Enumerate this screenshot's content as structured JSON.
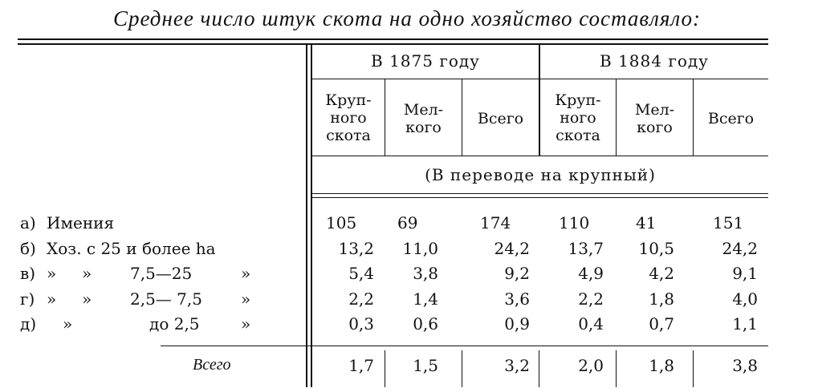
{
  "title": "Среднее число штук скота на одно хозяйство составляло:",
  "headers": {
    "year1": "В 1875 году",
    "year2": "В 1884 году",
    "sub1": [
      "Круп-",
      "ного",
      "скота"
    ],
    "sub2": [
      "Мел-",
      "кого"
    ],
    "sub3": "Всего",
    "conversion": "(В переводе на крупный)"
  },
  "rows": [
    {
      "c1": "а)",
      "c2": "Имения",
      "c3": "",
      "c4": "",
      "values": [
        "105",
        "69",
        "174",
        "110",
        "41",
        "151"
      ]
    },
    {
      "c1": "б)",
      "c2": "Хоз. с 25 и более ha",
      "c3": "",
      "c4": "",
      "values": [
        "13,2",
        "11,0",
        "24,2",
        "13,7",
        "10,5",
        "24,2"
      ]
    },
    {
      "c1": "в)",
      "c2": "»     »",
      "c3": "7,5—25",
      "c4": "»",
      "values": [
        "5,4",
        "3,8",
        "9,2",
        "4,9",
        "4,2",
        "9,1"
      ]
    },
    {
      "c1": "г)",
      "c2": "»     »",
      "c3": "2,5— 7,5",
      "c4": "»",
      "values": [
        "2,2",
        "1,4",
        "3,6",
        "2,2",
        "1,8",
        "4,0"
      ]
    },
    {
      "c1": "д)",
      "c2": "»",
      "c3": "до 2,5",
      "c4": "»",
      "values": [
        "0,3",
        "0,6",
        "0,9",
        "0,4",
        "0,7",
        "1,1"
      ]
    }
  ],
  "total": {
    "label": "Всего",
    "values": [
      "1,7",
      "1,5",
      "3,2",
      "2,0",
      "1,8",
      "3,8"
    ]
  }
}
